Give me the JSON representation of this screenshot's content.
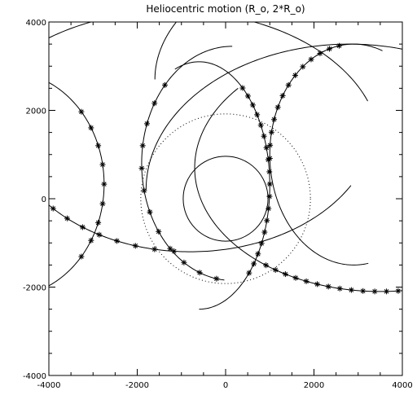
{
  "chart_data": {
    "type": "line",
    "title": "Heliocentric motion (R_o, 2*R_o)",
    "xlabel": "",
    "ylabel": "",
    "xlim": [
      -4000,
      4000
    ],
    "ylim": [
      -4000,
      4000
    ],
    "x_ticks": [
      -4000,
      -2000,
      0,
      2000,
      4000
    ],
    "y_ticks": [
      -4000,
      -2000,
      0,
      2000,
      4000
    ],
    "x_tick_labels": [
      "-4000",
      "-2000",
      "0",
      "2000",
      "4000"
    ],
    "y_tick_labels": [
      "-4000",
      "-2000",
      "0",
      "2000",
      "4000"
    ],
    "grid": false,
    "legend": "none",
    "circles": [
      {
        "cx": 0,
        "cy": 0,
        "r": 960,
        "style": "solid"
      },
      {
        "cx": 0,
        "cy": 0,
        "r": 1920,
        "style": "dotted"
      }
    ],
    "arcs": [
      {
        "cx": -4950,
        "cy": 330,
        "rx": 2200,
        "ry": 2550,
        "t_start": -75,
        "t_end": 72,
        "marker_start": -40,
        "marker_end": 40,
        "marker_count": 9
      },
      {
        "cx": -600,
        "cy": 300,
        "rx": 1600,
        "ry": 2800,
        "t_start": -90,
        "t_end": 110,
        "marker_start": -45,
        "marker_end": 52,
        "marker_count": 18
      },
      {
        "cx": 150,
        "cy": 800,
        "rx": 2050,
        "ry": 2650,
        "t_start": 90,
        "t_end": 265,
        "marker_start": 138,
        "marker_end": 260,
        "marker_count": 12
      },
      {
        "cx": 2900,
        "cy": 1000,
        "rx": 1900,
        "ry": 2500,
        "t_start": 70,
        "t_end": 280,
        "marker_start": 100,
        "marker_end": 182,
        "marker_count": 13
      },
      {
        "cx": -1200,
        "cy": 1150,
        "rx": 4700,
        "ry": 3100,
        "t_start": 20,
        "t_end": 200,
        "marker_start": 198,
        "marker_end": 290,
        "marker_count": 0
      },
      {
        "cx": 3500,
        "cy": 700,
        "rx": 4200,
        "ry": 2800,
        "t_start": 140,
        "t_end": 340,
        "marker_start": 232,
        "marker_end": 330,
        "marker_count": 28
      },
      {
        "cx": -800,
        "cy": 1800,
        "rx": 4200,
        "ry": 3000,
        "t_start": 195,
        "t_end": 330,
        "marker_start": 198,
        "marker_end": 265,
        "marker_count": 12
      },
      {
        "cx": 3300,
        "cy": 2700,
        "rx": 4900,
        "ry": 3000,
        "t_start": 40,
        "t_end": 180,
        "marker_start": 999,
        "marker_end": 999,
        "marker_count": 0
      },
      {
        "cx": 2800,
        "cy": 200,
        "rx": 4600,
        "ry": 3300,
        "t_start": 60,
        "t_end": 180,
        "marker_start": 999,
        "marker_end": 999,
        "marker_count": 0
      }
    ]
  }
}
